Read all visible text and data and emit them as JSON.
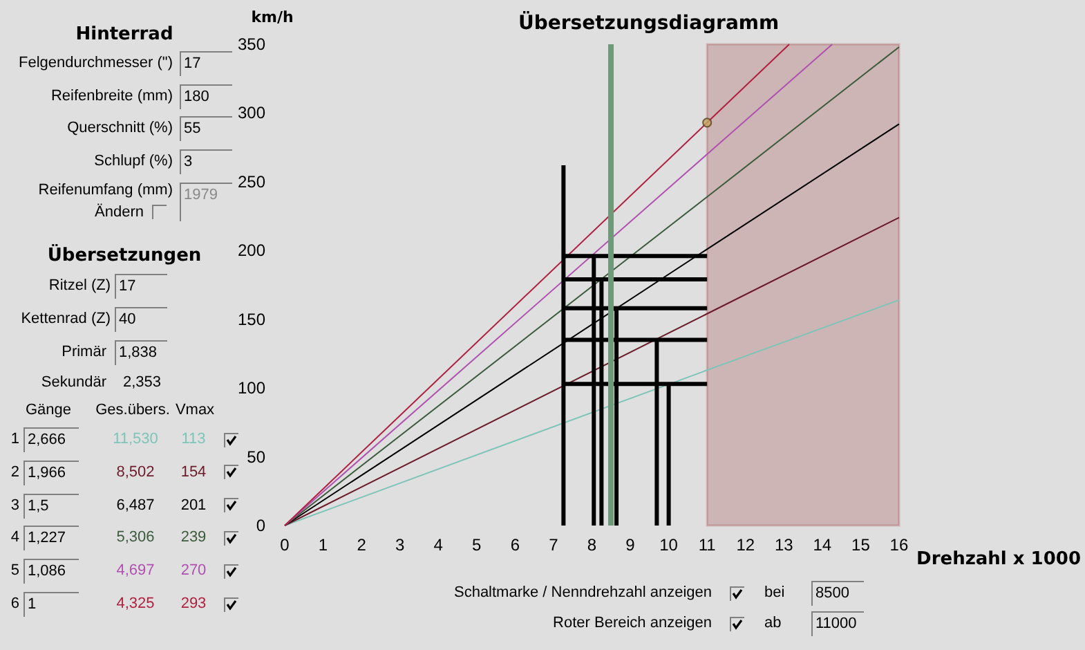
{
  "chart_data": {
    "type": "line",
    "title": "Übersetzungsdiagramm",
    "xlabel": "Drehzahl x 1000",
    "ylabel": "km/h",
    "xlim": [
      0,
      16
    ],
    "xticks": [
      0,
      1,
      2,
      3,
      4,
      5,
      6,
      7,
      8,
      9,
      10,
      11,
      12,
      13,
      14,
      15,
      16
    ],
    "ylim": [
      0,
      350
    ],
    "yticks": [
      0,
      50,
      100,
      150,
      200,
      250,
      300,
      350
    ],
    "marker": "none",
    "line_style": "solid",
    "series": [
      {
        "color": "#7fc4b8",
        "x": [
          0,
          11,
          16
        ],
        "values": [
          0,
          113,
          164
        ]
      },
      {
        "color": "#6b1a2a",
        "x": [
          0,
          11,
          16
        ],
        "values": [
          0,
          154,
          224
        ]
      },
      {
        "color": "#000000",
        "x": [
          0,
          11,
          16
        ],
        "values": [
          0,
          201,
          292
        ]
      },
      {
        "color": "#3c5a3c",
        "x": [
          0,
          11,
          16
        ],
        "values": [
          0,
          239,
          348
        ]
      },
      {
        "color": "#b050b0",
        "x": [
          0,
          11,
          14.26
        ],
        "values": [
          0,
          270,
          350
        ]
      },
      {
        "color": "#b02040",
        "x": [
          0,
          11,
          13.14
        ],
        "values": [
          0,
          293,
          350
        ]
      },
      {
        "color": "#000000",
        "x": [
          7.26,
          7.26
        ],
        "values": [
          0,
          262
        ]
      },
      {
        "color": "#000000",
        "x": [
          7.26,
          11
        ],
        "values": [
          196,
          196
        ]
      },
      {
        "color": "#000000",
        "x": [
          7.26,
          11
        ],
        "values": [
          179,
          179
        ]
      },
      {
        "color": "#000000",
        "x": [
          7.26,
          11
        ],
        "values": [
          158,
          158
        ]
      },
      {
        "color": "#000000",
        "x": [
          7.26,
          11
        ],
        "values": [
          135,
          135
        ]
      },
      {
        "color": "#000000",
        "x": [
          7.26,
          11
        ],
        "values": [
          103,
          103
        ]
      },
      {
        "color": "#000000",
        "x": [
          8.05,
          8.05
        ],
        "values": [
          0,
          196
        ]
      },
      {
        "color": "#000000",
        "x": [
          8.25,
          8.25
        ],
        "values": [
          0,
          179
        ]
      },
      {
        "color": "#000000",
        "x": [
          8.64,
          8.64
        ],
        "values": [
          0,
          158
        ]
      },
      {
        "color": "#000000",
        "x": [
          9.69,
          9.69
        ],
        "values": [
          0,
          135
        ]
      },
      {
        "color": "#000000",
        "x": [
          10.0,
          10.0
        ],
        "values": [
          0,
          103
        ]
      },
      {
        "type": "scatter",
        "marker": "circle",
        "color": "#c8a860",
        "x": [
          11
        ],
        "values": [
          293
        ]
      }
    ],
    "ref_lines": [
      {
        "axis": "x",
        "value": 8.5,
        "color": "#6e9a7a"
      }
    ],
    "bands": [
      {
        "axis": "x",
        "from": 11,
        "to": 16,
        "color": "#8b1a1a"
      }
    ],
    "annotations": [
      "Hinterrad",
      "Felgendurchmesser (\")",
      "17",
      "Reifenbreite (mm)",
      "180",
      "Querschnitt (%)",
      "55",
      "Schlupf (%)",
      "3",
      "Reifenumfang (mm)",
      "Ändern",
      "1979",
      "Übersetzungen",
      "Ritzel (Z)",
      "17",
      "Kettenrad (Z)",
      "40",
      "Primär",
      "1,838",
      "Sekundär",
      "2,353",
      "Gänge",
      "Ges.übers.",
      "Vmax",
      "1",
      "2,666",
      "11,530",
      "113",
      "2",
      "1,966",
      "8,502",
      "154",
      "3",
      "1,5",
      "6,487",
      "201",
      "4",
      "1,227",
      "5,306",
      "239",
      "5",
      "1,086",
      "4,697",
      "270",
      "6",
      "1",
      "4,325",
      "293",
      "Schaltmarke / Nenndrehzahl anzeigen",
      "bei",
      "8500",
      "Roter Bereich anzeigen",
      "ab",
      "11000"
    ]
  }
}
